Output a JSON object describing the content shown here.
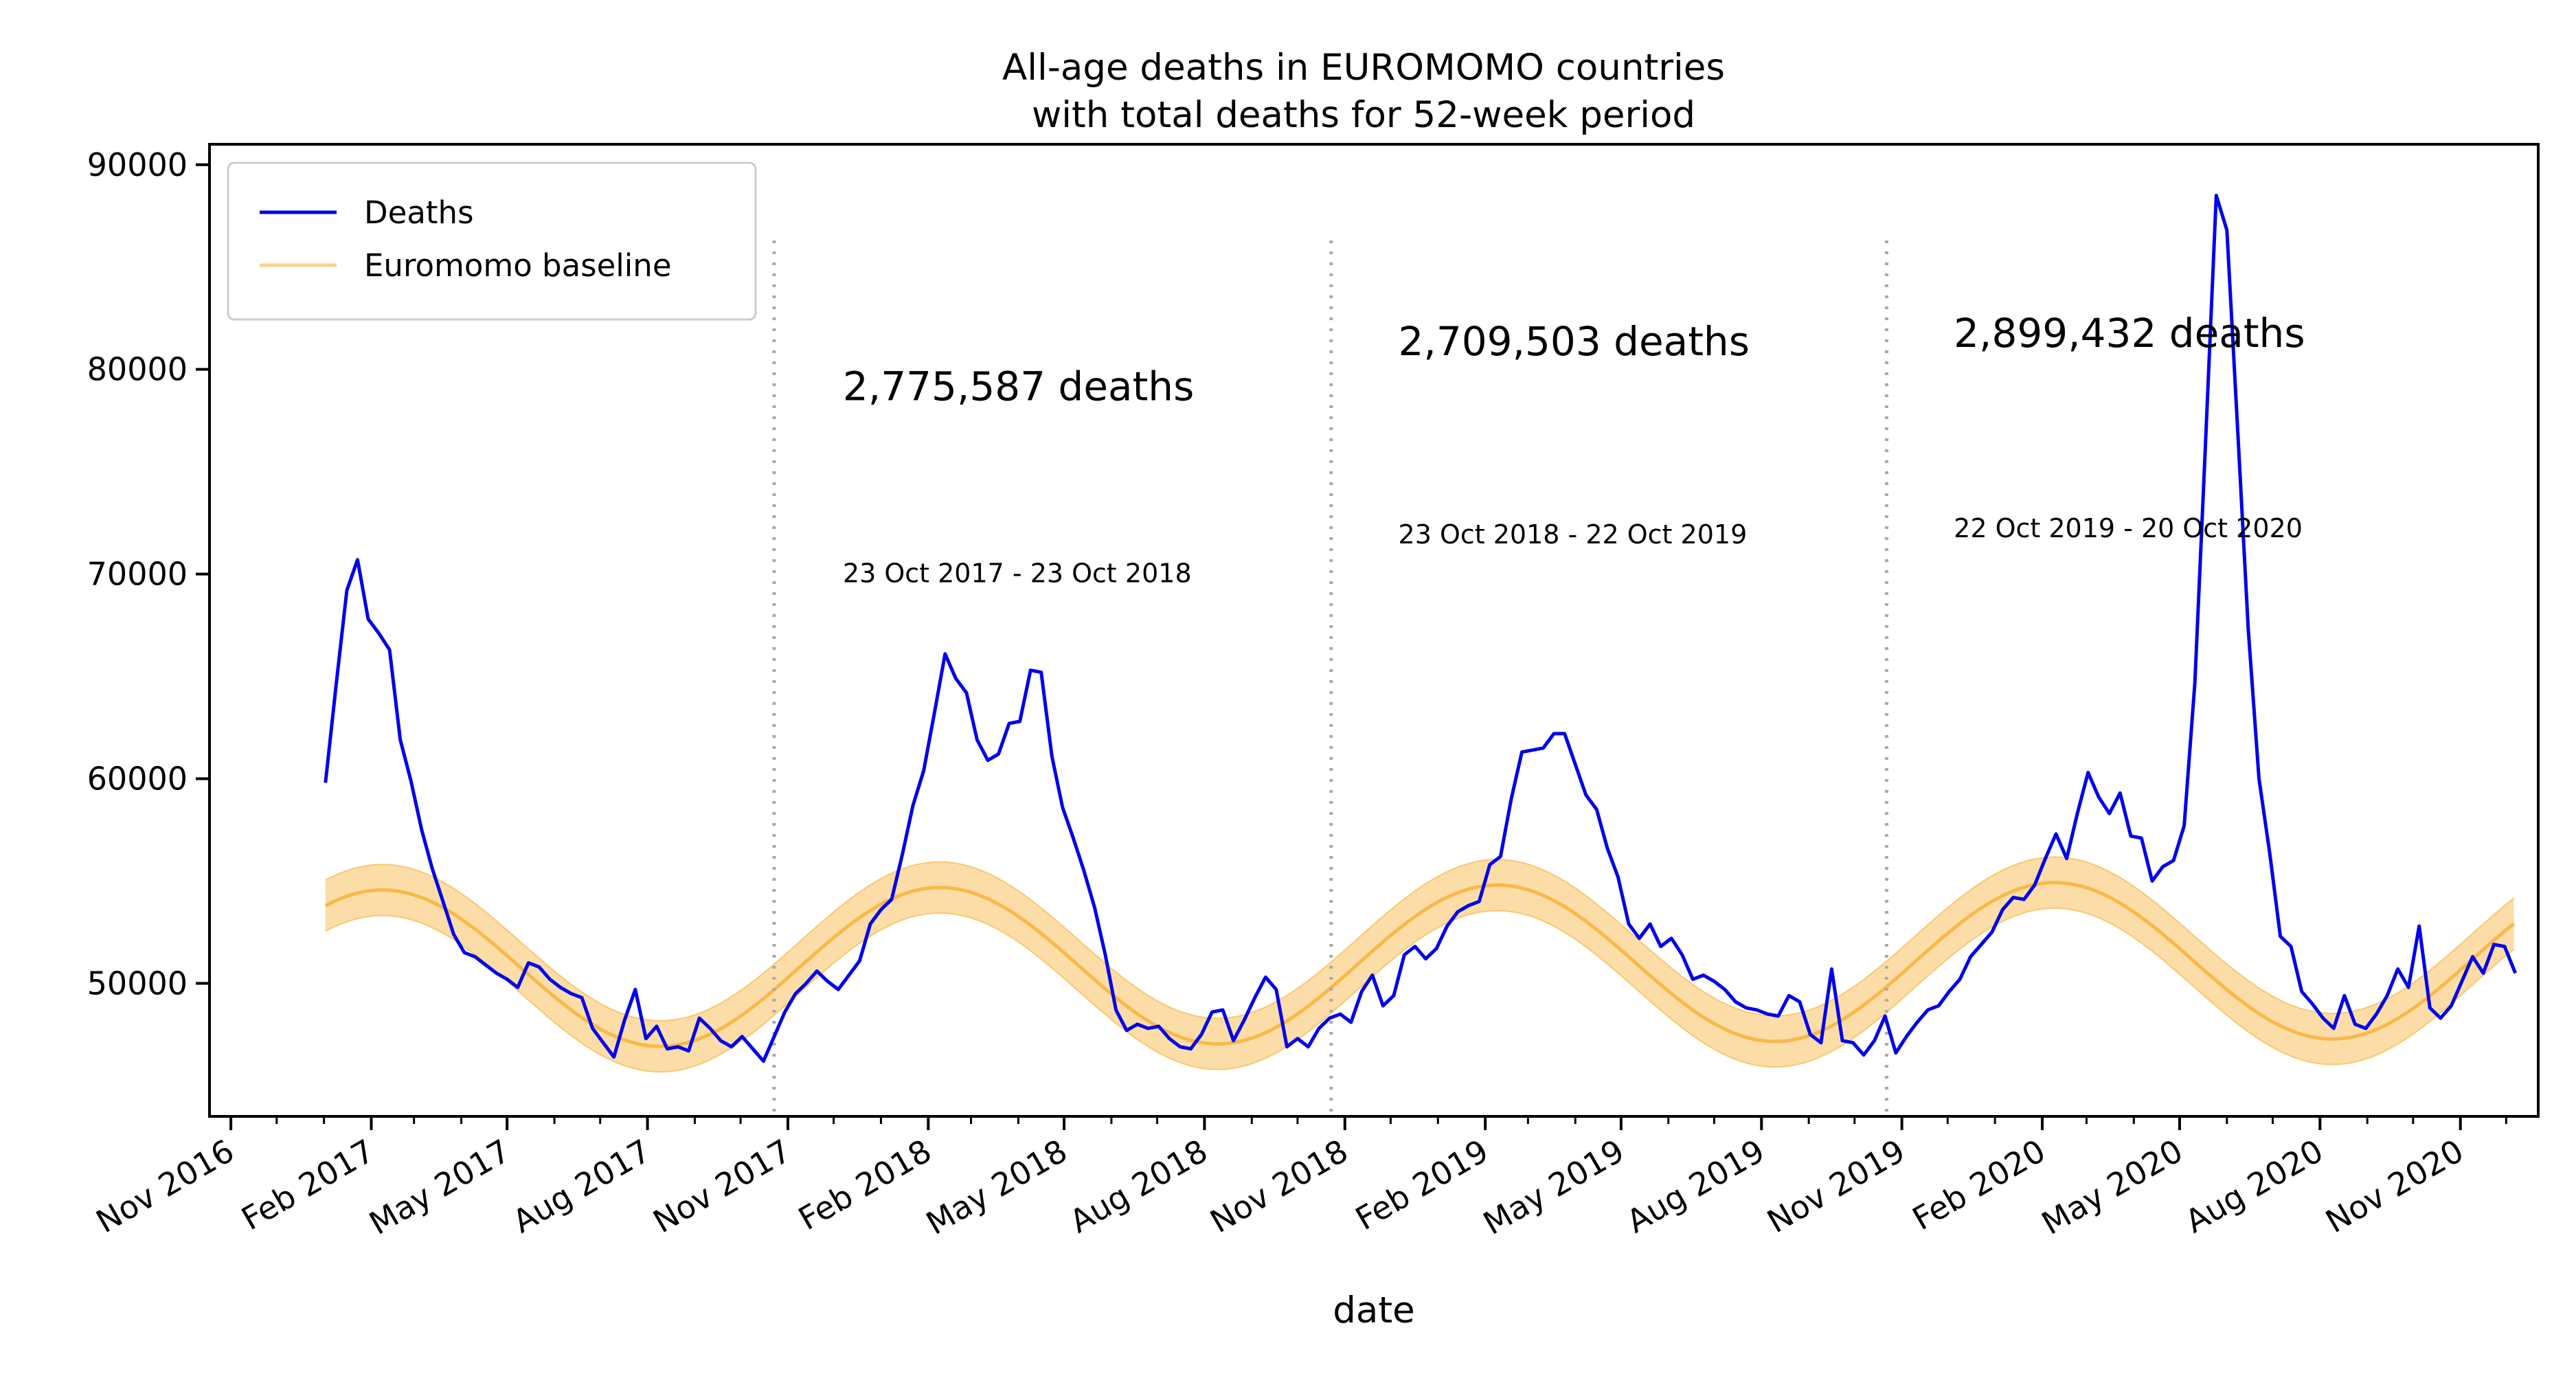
{
  "chart_data": {
    "type": "line",
    "title": "All-age deaths in EUROMOMO countries",
    "subtitle": "with total deaths for 52-week period",
    "xlabel": "date",
    "ylabel": "",
    "ylim": [
      43500,
      91000
    ],
    "xlim": [
      "2016-10-18",
      "2020-12-22"
    ],
    "grid": false,
    "legend_position": "upper left",
    "y_ticks": [
      "50000",
      "60000",
      "70000",
      "80000",
      "90000"
    ],
    "x_ticks": [
      "Nov 2016",
      "Feb 2017",
      "May 2017",
      "Aug 2017",
      "Nov 2017",
      "Feb 2018",
      "May 2018",
      "Aug 2018",
      "Nov 2018",
      "Feb 2019",
      "May 2019",
      "Aug 2019",
      "Nov 2019",
      "Feb 2020",
      "May 2020",
      "Aug 2020",
      "Nov 2020"
    ],
    "colors": {
      "deaths": "#0000ee",
      "baseline": "#f9b84a",
      "band": "#fbd189",
      "divider": "#aaaaaa"
    },
    "series": [
      {
        "name": "Deaths",
        "points": [
          [
            "2017-01-02",
            59800
          ],
          [
            "2017-01-09",
            64600
          ],
          [
            "2017-01-16",
            69200
          ],
          [
            "2017-01-23",
            70700
          ],
          [
            "2017-01-30",
            67800
          ],
          [
            "2017-02-06",
            67100
          ],
          [
            "2017-02-13",
            66300
          ],
          [
            "2017-02-20",
            61900
          ],
          [
            "2017-02-27",
            59900
          ],
          [
            "2017-03-06",
            57500
          ],
          [
            "2017-03-13",
            55600
          ],
          [
            "2017-03-20",
            54000
          ],
          [
            "2017-03-27",
            52400
          ],
          [
            "2017-04-03",
            51500
          ],
          [
            "2017-04-10",
            51300
          ],
          [
            "2017-04-17",
            50900
          ],
          [
            "2017-04-24",
            50500
          ],
          [
            "2017-05-01",
            50200
          ],
          [
            "2017-05-08",
            49800
          ],
          [
            "2017-05-15",
            51000
          ],
          [
            "2017-05-22",
            50800
          ],
          [
            "2017-05-29",
            50200
          ],
          [
            "2017-06-05",
            49800
          ],
          [
            "2017-06-12",
            49500
          ],
          [
            "2017-06-19",
            49300
          ],
          [
            "2017-06-26",
            47800
          ],
          [
            "2017-07-03",
            47100
          ],
          [
            "2017-07-10",
            46400
          ],
          [
            "2017-07-17",
            48200
          ],
          [
            "2017-07-24",
            49700
          ],
          [
            "2017-07-31",
            47300
          ],
          [
            "2017-08-07",
            47900
          ],
          [
            "2017-08-14",
            46800
          ],
          [
            "2017-08-21",
            46900
          ],
          [
            "2017-08-28",
            46700
          ],
          [
            "2017-09-04",
            48300
          ],
          [
            "2017-09-11",
            47800
          ],
          [
            "2017-09-18",
            47200
          ],
          [
            "2017-09-25",
            46900
          ],
          [
            "2017-10-02",
            47400
          ],
          [
            "2017-10-09",
            46800
          ],
          [
            "2017-10-16",
            46200
          ],
          [
            "2017-10-23",
            47400
          ],
          [
            "2017-10-30",
            48600
          ],
          [
            "2017-11-06",
            49500
          ],
          [
            "2017-11-13",
            50000
          ],
          [
            "2017-11-20",
            50600
          ],
          [
            "2017-11-27",
            50100
          ],
          [
            "2017-12-04",
            49700
          ],
          [
            "2017-12-11",
            50400
          ],
          [
            "2017-12-18",
            51100
          ],
          [
            "2017-12-25",
            52900
          ],
          [
            "2018-01-01",
            53600
          ],
          [
            "2018-01-08",
            54100
          ],
          [
            "2018-01-15",
            56300
          ],
          [
            "2018-01-22",
            58700
          ],
          [
            "2018-01-29",
            60400
          ],
          [
            "2018-02-05",
            63200
          ],
          [
            "2018-02-12",
            66100
          ],
          [
            "2018-02-19",
            64900
          ],
          [
            "2018-02-26",
            64200
          ],
          [
            "2018-03-05",
            61900
          ],
          [
            "2018-03-12",
            60900
          ],
          [
            "2018-03-19",
            61200
          ],
          [
            "2018-03-26",
            62700
          ],
          [
            "2018-04-02",
            62800
          ],
          [
            "2018-04-09",
            65300
          ],
          [
            "2018-04-16",
            65200
          ],
          [
            "2018-04-23",
            61100
          ],
          [
            "2018-04-30",
            58600
          ],
          [
            "2018-05-07",
            57100
          ],
          [
            "2018-05-14",
            55500
          ],
          [
            "2018-05-21",
            53700
          ],
          [
            "2018-05-28",
            51400
          ],
          [
            "2018-06-04",
            48700
          ],
          [
            "2018-06-11",
            47700
          ],
          [
            "2018-06-18",
            48000
          ],
          [
            "2018-06-25",
            47800
          ],
          [
            "2018-07-02",
            47900
          ],
          [
            "2018-07-09",
            47300
          ],
          [
            "2018-07-16",
            46900
          ],
          [
            "2018-07-23",
            46800
          ],
          [
            "2018-07-30",
            47500
          ],
          [
            "2018-08-06",
            48600
          ],
          [
            "2018-08-13",
            48700
          ],
          [
            "2018-08-20",
            47200
          ],
          [
            "2018-08-27",
            48200
          ],
          [
            "2018-09-03",
            49300
          ],
          [
            "2018-09-10",
            50300
          ],
          [
            "2018-09-17",
            49700
          ],
          [
            "2018-09-24",
            46900
          ],
          [
            "2018-10-01",
            47300
          ],
          [
            "2018-10-08",
            46900
          ],
          [
            "2018-10-15",
            47800
          ],
          [
            "2018-10-22",
            48300
          ],
          [
            "2018-10-29",
            48500
          ],
          [
            "2018-11-05",
            48100
          ],
          [
            "2018-11-12",
            49600
          ],
          [
            "2018-11-19",
            50400
          ],
          [
            "2018-11-26",
            48900
          ],
          [
            "2018-12-03",
            49400
          ],
          [
            "2018-12-10",
            51400
          ],
          [
            "2018-12-17",
            51800
          ],
          [
            "2018-12-24",
            51200
          ],
          [
            "2018-12-31",
            51700
          ],
          [
            "2019-01-07",
            52800
          ],
          [
            "2019-01-14",
            53500
          ],
          [
            "2019-01-21",
            53800
          ],
          [
            "2019-01-28",
            54000
          ],
          [
            "2019-02-04",
            55800
          ],
          [
            "2019-02-11",
            56200
          ],
          [
            "2019-02-18",
            59000
          ],
          [
            "2019-02-25",
            61300
          ],
          [
            "2019-03-04",
            61400
          ],
          [
            "2019-03-11",
            61500
          ],
          [
            "2019-03-18",
            62200
          ],
          [
            "2019-03-25",
            62200
          ],
          [
            "2019-04-01",
            60700
          ],
          [
            "2019-04-08",
            59200
          ],
          [
            "2019-04-15",
            58500
          ],
          [
            "2019-04-22",
            56600
          ],
          [
            "2019-04-29",
            55200
          ],
          [
            "2019-05-06",
            52900
          ],
          [
            "2019-05-13",
            52200
          ],
          [
            "2019-05-20",
            52900
          ],
          [
            "2019-05-27",
            51800
          ],
          [
            "2019-06-03",
            52200
          ],
          [
            "2019-06-10",
            51400
          ],
          [
            "2019-06-17",
            50200
          ],
          [
            "2019-06-24",
            50400
          ],
          [
            "2019-07-01",
            50100
          ],
          [
            "2019-07-08",
            49700
          ],
          [
            "2019-07-15",
            49100
          ],
          [
            "2019-07-22",
            48800
          ],
          [
            "2019-07-29",
            48700
          ],
          [
            "2019-08-05",
            48500
          ],
          [
            "2019-08-12",
            48400
          ],
          [
            "2019-08-19",
            49400
          ],
          [
            "2019-08-26",
            49100
          ],
          [
            "2019-09-02",
            47500
          ],
          [
            "2019-09-09",
            47100
          ],
          [
            "2019-09-16",
            50700
          ],
          [
            "2019-09-23",
            47200
          ],
          [
            "2019-09-30",
            47100
          ],
          [
            "2019-10-07",
            46500
          ],
          [
            "2019-10-14",
            47200
          ],
          [
            "2019-10-21",
            48400
          ],
          [
            "2019-10-28",
            46600
          ],
          [
            "2019-11-04",
            47400
          ],
          [
            "2019-11-11",
            48100
          ],
          [
            "2019-11-18",
            48700
          ],
          [
            "2019-11-25",
            48900
          ],
          [
            "2019-12-02",
            49600
          ],
          [
            "2019-12-09",
            50200
          ],
          [
            "2019-12-16",
            51300
          ],
          [
            "2019-12-23",
            51900
          ],
          [
            "2019-12-30",
            52500
          ],
          [
            "2020-01-06",
            53600
          ],
          [
            "2020-01-13",
            54200
          ],
          [
            "2020-01-20",
            54100
          ],
          [
            "2020-01-27",
            54800
          ],
          [
            "2020-02-03",
            56100
          ],
          [
            "2020-02-10",
            57300
          ],
          [
            "2020-02-17",
            56100
          ],
          [
            "2020-02-24",
            58300
          ],
          [
            "2020-03-02",
            60300
          ],
          [
            "2020-03-09",
            59100
          ],
          [
            "2020-03-16",
            58300
          ],
          [
            "2020-03-23",
            59300
          ],
          [
            "2020-03-30",
            57200
          ],
          [
            "2020-04-06",
            57100
          ],
          [
            "2020-04-13",
            55000
          ],
          [
            "2020-04-20",
            55700
          ],
          [
            "2020-04-27",
            56000
          ],
          [
            "2020-05-04",
            57700
          ],
          [
            "2020-05-11",
            64700
          ],
          [
            "2020-05-18",
            76400
          ],
          [
            "2020-05-25",
            88500
          ],
          [
            "2020-06-01",
            86800
          ],
          [
            "2020-06-08",
            77100
          ],
          [
            "2020-06-15",
            67300
          ],
          [
            "2020-06-22",
            60000
          ],
          [
            "2020-06-29",
            56400
          ],
          [
            "2020-07-06",
            52300
          ],
          [
            "2020-07-13",
            51800
          ],
          [
            "2020-07-20",
            49600
          ],
          [
            "2020-07-27",
            49000
          ],
          [
            "2020-08-03",
            48300
          ],
          [
            "2020-08-10",
            47800
          ],
          [
            "2020-08-17",
            49400
          ],
          [
            "2020-08-24",
            48000
          ],
          [
            "2020-08-31",
            47800
          ],
          [
            "2020-09-07",
            48500
          ],
          [
            "2020-09-14",
            49400
          ],
          [
            "2020-09-21",
            50700
          ],
          [
            "2020-09-28",
            49800
          ],
          [
            "2020-10-05",
            52800
          ],
          [
            "2020-10-12",
            48800
          ],
          [
            "2020-10-19",
            48300
          ],
          [
            "2020-10-26",
            48900
          ],
          [
            "2020-11-02",
            50100
          ],
          [
            "2020-11-09",
            51300
          ],
          [
            "2020-11-16",
            50500
          ],
          [
            "2020-11-23",
            51900
          ],
          [
            "2020-11-30",
            51800
          ],
          [
            "2020-12-07",
            50500
          ]
        ]
      },
      {
        "name": "Euromomo baseline",
        "sinusoid": {
          "start": "2017-01-02",
          "end": "2020-12-07",
          "mean": 50700,
          "amplitude": 3850,
          "peak_date": "2017-02-08",
          "period_days": 365.25,
          "mean_growth_per_year": 120,
          "band_halfwidth": 1250
        }
      }
    ],
    "dividers": [
      "2017-10-23",
      "2018-10-23",
      "2019-10-22"
    ],
    "annotations": [
      {
        "total": "2,775,587 deaths",
        "period": "23 Oct 2017 - 23 Oct 2018",
        "anchor_date": "2017-12-07",
        "total_y": 78500,
        "period_y": 69600
      },
      {
        "total": "2,709,503 deaths",
        "period": "23 Oct 2018 - 22 Oct 2019",
        "anchor_date": "2018-12-06",
        "total_y": 80700,
        "period_y": 71500
      },
      {
        "total": "2,899,432 deaths",
        "period": "22 Oct 2019 - 20 Oct 2020",
        "anchor_date": "2019-12-05",
        "total_y": 81100,
        "period_y": 71800
      }
    ]
  }
}
